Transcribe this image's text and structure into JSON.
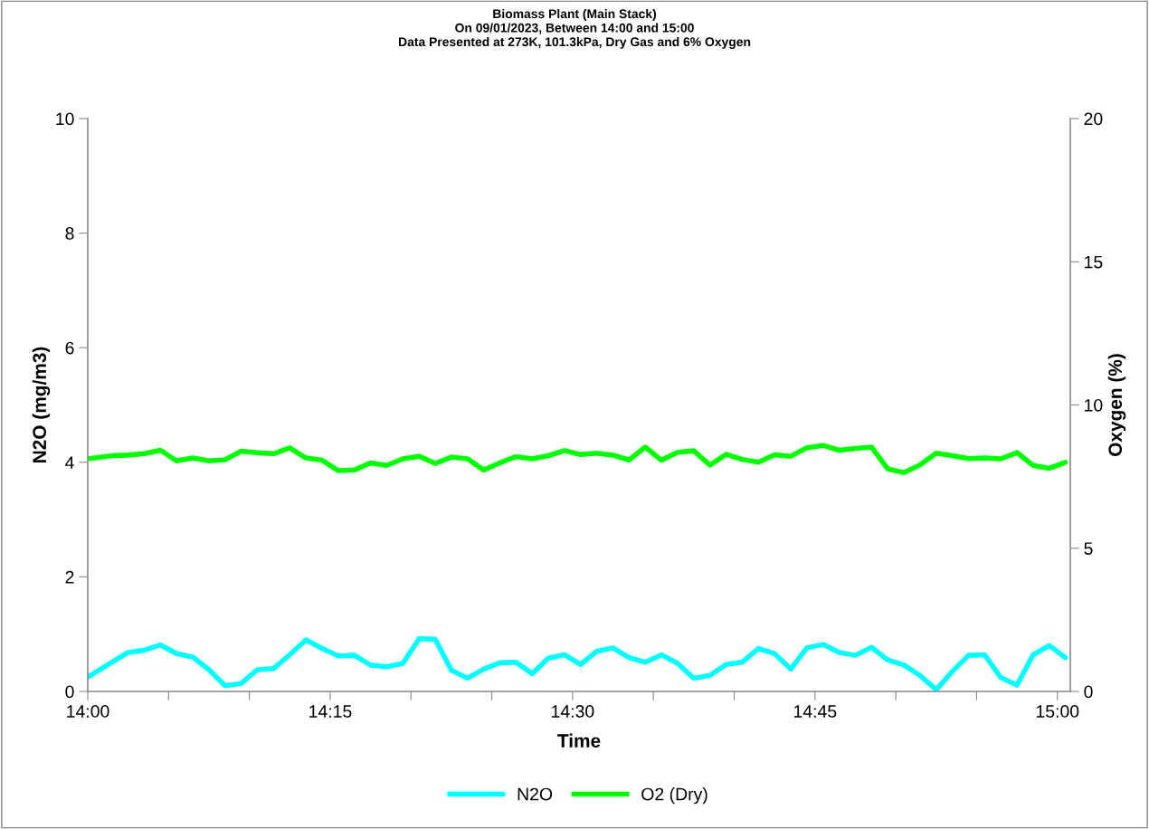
{
  "chart_data": {
    "type": "line",
    "title": "Biomass Plant (Main Stack)\nOn 09/01/2023, Between 14:00 and 15:00\nData Presented at 273K, 101.3kPa, Dry Gas and 6% Oxygen",
    "xlabel": "Time",
    "ylabel": "N2O (mg/m3)",
    "y2label": "Oxygen (%)",
    "x": [
      14,
      14.025,
      14.0417,
      14.0583,
      14.075,
      14.0917,
      14.1083,
      14.125,
      14.1417,
      14.1583,
      14.175,
      14.1917,
      14.2083,
      14.225,
      14.2417,
      14.2583,
      14.275,
      14.2917,
      14.3083,
      14.325,
      14.3417,
      14.3583,
      14.375,
      14.3917,
      14.4083,
      14.425,
      14.4417,
      14.4583,
      14.475,
      14.4917,
      14.5083,
      14.525,
      14.5417,
      14.5583,
      14.575,
      14.5917,
      14.6083,
      14.625,
      14.6417,
      14.6583,
      14.675,
      14.6917,
      14.7083,
      14.725,
      14.7417,
      14.7583,
      14.775,
      14.7917,
      14.8083,
      14.825,
      14.8417,
      14.8583,
      14.875,
      14.8917,
      14.9083,
      14.925,
      14.9417,
      14.9583,
      14.975,
      14.9917,
      15.0083
    ],
    "series": [
      {
        "name": "N2O",
        "color": "#00ffff",
        "values": [
          0.25,
          0.51,
          0.68,
          0.72,
          0.81,
          0.66,
          0.6,
          0.38,
          0.1,
          0.14,
          0.38,
          0.4,
          0.64,
          0.9,
          0.75,
          0.62,
          0.63,
          0.46,
          0.43,
          0.49,
          0.92,
          0.91,
          0.37,
          0.23,
          0.39,
          0.5,
          0.51,
          0.31,
          0.58,
          0.64,
          0.47,
          0.7,
          0.76,
          0.59,
          0.51,
          0.64,
          0.49,
          0.23,
          0.28,
          0.47,
          0.51,
          0.75,
          0.66,
          0.39,
          0.76,
          0.82,
          0.68,
          0.63,
          0.77,
          0.55,
          0.46,
          0.28,
          0.03,
          0.35,
          0.63,
          0.64,
          0.24,
          0.11,
          0.64,
          0.8,
          0.59
        ]
      },
      {
        "name": "O2 (Dry)",
        "color": "#00ff00",
        "axis": "y2",
        "values": [
          8.12,
          8.23,
          8.25,
          8.3,
          8.42,
          8.05,
          8.15,
          8.05,
          8.09,
          8.39,
          8.33,
          8.3,
          8.5,
          8.15,
          8.07,
          7.71,
          7.73,
          7.98,
          7.89,
          8.12,
          8.21,
          7.96,
          8.18,
          8.12,
          7.73,
          7.98,
          8.2,
          8.12,
          8.23,
          8.41,
          8.27,
          8.32,
          8.25,
          8.08,
          8.53,
          8.07,
          8.35,
          8.4,
          7.9,
          8.28,
          8.1,
          8.0,
          8.26,
          8.21,
          8.51,
          8.59,
          8.42,
          8.48,
          8.53,
          7.77,
          7.64,
          7.91,
          8.32,
          8.23,
          8.13,
          8.15,
          8.12,
          8.34,
          7.89,
          7.79,
          8.0
        ]
      }
    ],
    "xlim": [
      14,
      15.0133
    ],
    "xticks": [
      {
        "value": 14,
        "label": "14:00"
      },
      {
        "value": 14.0833,
        "label": null
      },
      {
        "value": 14.1667,
        "label": null
      },
      {
        "value": 14.25,
        "label": "14:15"
      },
      {
        "value": 14.3333,
        "label": null
      },
      {
        "value": 14.4167,
        "label": null
      },
      {
        "value": 14.5,
        "label": "14:30"
      },
      {
        "value": 14.5833,
        "label": null
      },
      {
        "value": 14.6667,
        "label": null
      },
      {
        "value": 14.75,
        "label": "14:45"
      },
      {
        "value": 14.8333,
        "label": null
      },
      {
        "value": 14.9167,
        "label": null
      },
      {
        "value": 15,
        "label": "15:00"
      }
    ],
    "ylim": [
      0,
      10
    ],
    "yticks": [
      0,
      2,
      4,
      6,
      8,
      10
    ],
    "y2lim": [
      0,
      20
    ],
    "y2ticks": [
      0,
      5,
      10,
      15,
      20
    ],
    "grid": false,
    "legend": "bottom",
    "marker": "none",
    "line_style": "solid"
  }
}
